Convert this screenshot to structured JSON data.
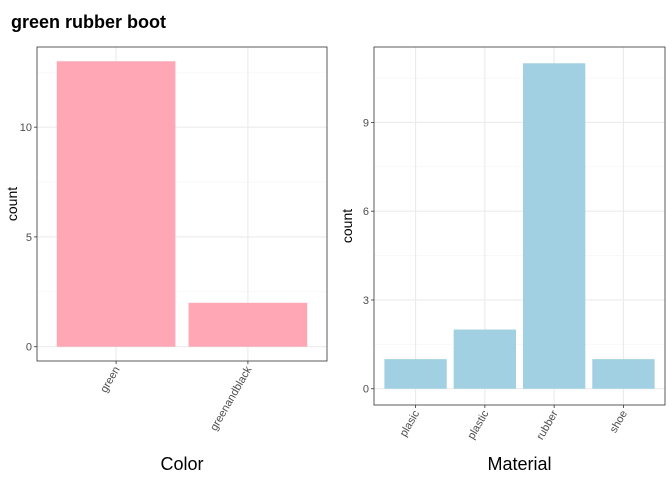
{
  "figure_title": "green rubber boot",
  "colors": {
    "panel_border": "#333333",
    "grid_major": "#ebebeb",
    "grid_minor": "#f5f5f5",
    "tick": "#333333"
  },
  "chart_data": [
    {
      "type": "bar",
      "xlabel": "Color",
      "ylabel": "count",
      "categories": [
        "green",
        "greenandblack"
      ],
      "values": [
        13,
        2
      ],
      "ylim": [
        -0.65,
        13.65
      ],
      "yticks": [
        0,
        5,
        10
      ],
      "tick_labels": [
        "0",
        "5",
        "10"
      ],
      "bar_color": "#ffa7b5",
      "grid": true
    },
    {
      "type": "bar",
      "xlabel": "Material",
      "ylabel": "count",
      "categories": [
        "plasic",
        "plastic",
        "rubber",
        "shoe"
      ],
      "values": [
        1,
        2,
        11,
        1
      ],
      "ylim": [
        -0.55,
        11.55
      ],
      "yticks": [
        0,
        3,
        6,
        9
      ],
      "tick_labels": [
        "0",
        "3",
        "6",
        "9"
      ],
      "bar_color": "#a0d0e2",
      "grid": true
    }
  ]
}
